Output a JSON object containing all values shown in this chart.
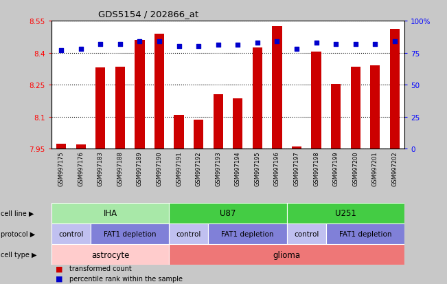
{
  "title": "GDS5154 / 202866_at",
  "samples": [
    "GSM997175",
    "GSM997176",
    "GSM997183",
    "GSM997188",
    "GSM997189",
    "GSM997190",
    "GSM997191",
    "GSM997192",
    "GSM997193",
    "GSM997194",
    "GSM997195",
    "GSM997196",
    "GSM997197",
    "GSM997198",
    "GSM997199",
    "GSM997200",
    "GSM997201",
    "GSM997202"
  ],
  "transformed_counts": [
    7.975,
    7.972,
    8.33,
    8.335,
    8.46,
    8.49,
    8.108,
    8.085,
    8.205,
    8.185,
    8.425,
    8.525,
    7.96,
    8.405,
    8.255,
    8.335,
    8.34,
    8.51
  ],
  "percentile_ranks": [
    77,
    78,
    82,
    82,
    84,
    84,
    80,
    80,
    81,
    81,
    83,
    84,
    78,
    83,
    82,
    82,
    82,
    84
  ],
  "ylim_left": [
    7.95,
    8.55
  ],
  "ylim_right": [
    0,
    100
  ],
  "yticks_left": [
    7.95,
    8.1,
    8.25,
    8.4,
    8.55
  ],
  "ytick_labels_left": [
    "7.95",
    "8.1",
    "8.25",
    "8.4",
    "8.55"
  ],
  "yticks_right": [
    0,
    25,
    50,
    75,
    100
  ],
  "ytick_labels_right": [
    "0",
    "25",
    "50",
    "75",
    "100%"
  ],
  "bar_color": "#cc0000",
  "dot_color": "#0000cc",
  "background_color": "#c8c8c8",
  "plot_bg_color": "#ffffff",
  "xticklabel_bg": "#d0d0d0",
  "cell_line_groups": [
    {
      "label": "IHA",
      "start": 0,
      "end": 5,
      "color": "#a8e8a8"
    },
    {
      "label": "U87",
      "start": 6,
      "end": 11,
      "color": "#44cc44"
    },
    {
      "label": "U251",
      "start": 12,
      "end": 17,
      "color": "#44cc44"
    }
  ],
  "protocol_groups": [
    {
      "label": "control",
      "start": 0,
      "end": 1,
      "color": "#c0c0f0"
    },
    {
      "label": "FAT1 depletion",
      "start": 2,
      "end": 5,
      "color": "#8080d8"
    },
    {
      "label": "control",
      "start": 6,
      "end": 7,
      "color": "#c0c0f0"
    },
    {
      "label": "FAT1 depletion",
      "start": 8,
      "end": 11,
      "color": "#8080d8"
    },
    {
      "label": "control",
      "start": 12,
      "end": 13,
      "color": "#c0c0f0"
    },
    {
      "label": "FAT1 depletion",
      "start": 14,
      "end": 17,
      "color": "#8080d8"
    }
  ],
  "cell_type_groups": [
    {
      "label": "astrocyte",
      "start": 0,
      "end": 5,
      "color": "#ffcccc"
    },
    {
      "label": "glioma",
      "start": 6,
      "end": 17,
      "color": "#ee7777"
    }
  ],
  "grid_linestyle": ":",
  "grid_linewidth": 0.8,
  "bar_width": 0.5
}
